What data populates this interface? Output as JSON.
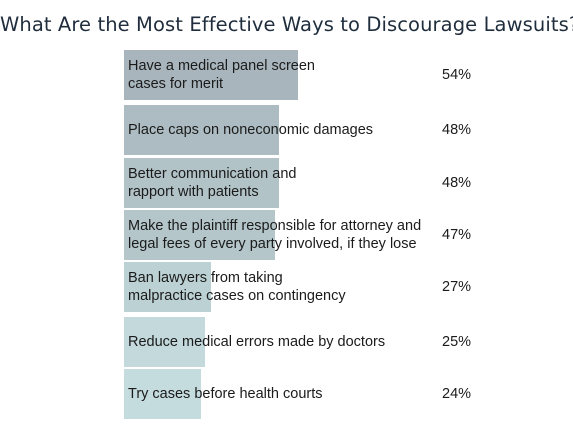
{
  "chart_data": {
    "type": "bar",
    "orientation": "horizontal",
    "title": "What Are the Most Effective Ways to Discourage Lawsuits?",
    "categories": [
      "Have a medical panel screen\ncases for merit",
      "Place caps on noneconomic damages",
      "Better communication and\nrapport with patients",
      "Make the plaintiff responsible for attorney and\nlegal fees of every party involved, if they lose",
      "Ban lawyers from taking\nmalpractice cases on contingency",
      "Reduce medical errors made by doctors",
      "Try cases before health courts"
    ],
    "values": [
      54,
      48,
      48,
      47,
      27,
      25,
      24
    ],
    "value_labels": [
      "54%",
      "48%",
      "48%",
      "47%",
      "27%",
      "25%",
      "24%"
    ],
    "unit": "%",
    "bar_colors": [
      "#a8b5bc",
      "#adbcc2",
      "#b2c3c8",
      "#b4c6ca",
      "#bcd1d3",
      "#c3d9dc",
      "#c5dcde"
    ],
    "xlim": [
      0,
      100
    ],
    "grid": false,
    "legend": "none"
  }
}
